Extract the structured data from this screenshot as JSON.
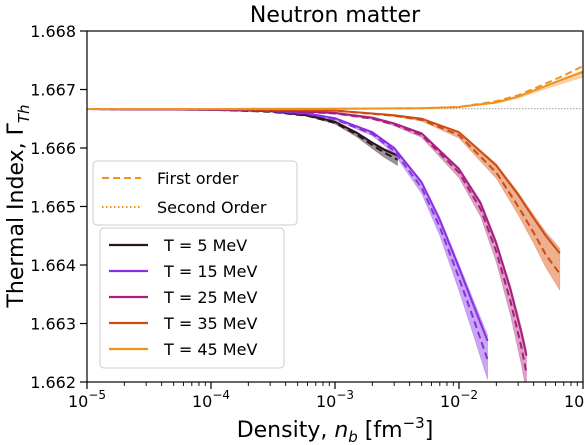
{
  "chart_data": {
    "type": "line",
    "title": "Neutron matter",
    "xlabel": "Density, n_b [fm^-3]",
    "ylabel": "Thermal Index, Γ_Th",
    "xscale": "log",
    "xlim": [
      1e-05,
      0.1
    ],
    "ylim": [
      1.662,
      1.668
    ],
    "x_ticks": [
      {
        "value": 1e-05,
        "base": "10",
        "exp": "−5"
      },
      {
        "value": 0.0001,
        "base": "10",
        "exp": "−4"
      },
      {
        "value": 0.001,
        "base": "10",
        "exp": "−3"
      },
      {
        "value": 0.01,
        "base": "10",
        "exp": "−2"
      },
      {
        "value": 0.1,
        "base": "10",
        "exp": "−1"
      }
    ],
    "y_ticks": [
      "1.662",
      "1.663",
      "1.664",
      "1.665",
      "1.666",
      "1.667",
      "1.668"
    ],
    "reference_line": {
      "y": 1.66667,
      "style": "dotted",
      "color": "#999999"
    },
    "legend_order": {
      "placement": "center-left",
      "entries": [
        {
          "label": "First order",
          "style": "dashed",
          "color": "#f0921e"
        },
        {
          "label": "Second Order",
          "style": "dotted",
          "color": "#f0921e"
        }
      ]
    },
    "legend_temperature": {
      "placement": "lower-left",
      "entries": [
        {
          "label": "T = 5 MeV",
          "color": "#2d1424"
        },
        {
          "label": "T = 15 MeV",
          "color": "#8a30e0"
        },
        {
          "label": "T = 25 MeV",
          "color": "#a8207e"
        },
        {
          "label": "T = 35 MeV",
          "color": "#cc4c14"
        },
        {
          "label": "T = 45 MeV",
          "color": "#f0921e"
        }
      ]
    },
    "series": [
      {
        "name": "T = 5 MeV",
        "color": "#2d1424",
        "fill": "#7a7070",
        "x": [
          1e-05,
          0.0001,
          0.0003,
          0.0006,
          0.001,
          0.0015,
          0.002,
          0.0025,
          0.0032
        ],
        "y": [
          1.666667,
          1.666655,
          1.66663,
          1.66656,
          1.66645,
          1.66626,
          1.66609,
          1.66597,
          1.66587
        ],
        "band": [
          0.0,
          0.0,
          0.0,
          1e-05,
          2e-05,
          4e-05,
          6e-05,
          8e-05,
          0.0001
        ],
        "first_order": [
          1.666667,
          1.666655,
          1.66662,
          1.66655,
          1.66643,
          1.66623,
          1.66605,
          1.66592,
          1.6658
        ]
      },
      {
        "name": "T = 15 MeV",
        "color": "#8a30e0",
        "fill": "#b688f0",
        "x": [
          1e-05,
          0.0001,
          0.0003,
          0.0006,
          0.001,
          0.002,
          0.003,
          0.005,
          0.007,
          0.01,
          0.013,
          0.017
        ],
        "y": [
          1.666667,
          1.666657,
          1.66664,
          1.66659,
          1.66651,
          1.66627,
          1.666,
          1.66541,
          1.66477,
          1.66395,
          1.66333,
          1.6627
        ],
        "band": [
          0.0,
          0.0,
          0.0,
          1e-05,
          1e-05,
          3e-05,
          5e-05,
          0.0001,
          0.00015,
          0.00022,
          0.00028,
          0.00034
        ],
        "first_order": [
          1.666667,
          1.666657,
          1.66663,
          1.66658,
          1.66649,
          1.66624,
          1.66595,
          1.66532,
          1.66465,
          1.66378,
          1.6631,
          1.66238
        ]
      },
      {
        "name": "T = 25 MeV",
        "color": "#a8207e",
        "fill": "#d080b0",
        "x": [
          1e-05,
          0.0001,
          0.0003,
          0.001,
          0.002,
          0.003,
          0.005,
          0.01,
          0.015,
          0.02,
          0.026,
          0.032,
          0.035
        ],
        "y": [
          1.666667,
          1.666662,
          1.66665,
          1.6666,
          1.66652,
          1.66642,
          1.66625,
          1.66564,
          1.66505,
          1.66437,
          1.66358,
          1.66283,
          1.66245
        ],
        "band": [
          0.0,
          0.0,
          0.0,
          1e-05,
          1e-05,
          2e-05,
          4e-05,
          9e-05,
          0.00013,
          0.00018,
          0.00024,
          0.0003,
          0.00033
        ],
        "first_order": [
          1.666667,
          1.666662,
          1.66665,
          1.66659,
          1.6665,
          1.6664,
          1.66622,
          1.66558,
          1.66495,
          1.66423,
          1.66338,
          1.66258,
          1.66215
        ]
      },
      {
        "name": "T = 35 MeV",
        "color": "#cc4c14",
        "fill": "#e8956a",
        "x": [
          1e-05,
          0.0001,
          0.001,
          0.003,
          0.005,
          0.01,
          0.02,
          0.03,
          0.04,
          0.05,
          0.065
        ],
        "y": [
          1.666667,
          1.666665,
          1.66664,
          1.66656,
          1.6665,
          1.66627,
          1.6657,
          1.6652,
          1.6648,
          1.6645,
          1.6642
        ],
        "band": [
          0.0,
          0.0,
          0.0,
          1e-05,
          2e-05,
          5e-05,
          0.0001,
          0.00014,
          0.00018,
          0.00022,
          0.00028
        ],
        "first_order": [
          1.666667,
          1.666665,
          1.66664,
          1.66655,
          1.66648,
          1.66622,
          1.66558,
          1.665,
          1.66455,
          1.66418,
          1.66385
        ]
      },
      {
        "name": "T = 45 MeV",
        "color": "#f0921e",
        "fill": "#f5c48a",
        "x": [
          1e-05,
          0.0001,
          0.001,
          0.005,
          0.01,
          0.02,
          0.03,
          0.05,
          0.07,
          0.1
        ],
        "y": [
          1.666667,
          1.666667,
          1.66667,
          1.66668,
          1.6667,
          1.66678,
          1.66688,
          1.66706,
          1.66718,
          1.6673
        ],
        "band": [
          0.0,
          0.0,
          0.0,
          0.0,
          1e-05,
          2e-05,
          3e-05,
          5e-05,
          7e-05,
          9e-05
        ],
        "first_order": [
          1.666667,
          1.666667,
          1.66667,
          1.66668,
          1.6667,
          1.6668,
          1.6669,
          1.6671,
          1.66724,
          1.6674
        ]
      }
    ]
  }
}
